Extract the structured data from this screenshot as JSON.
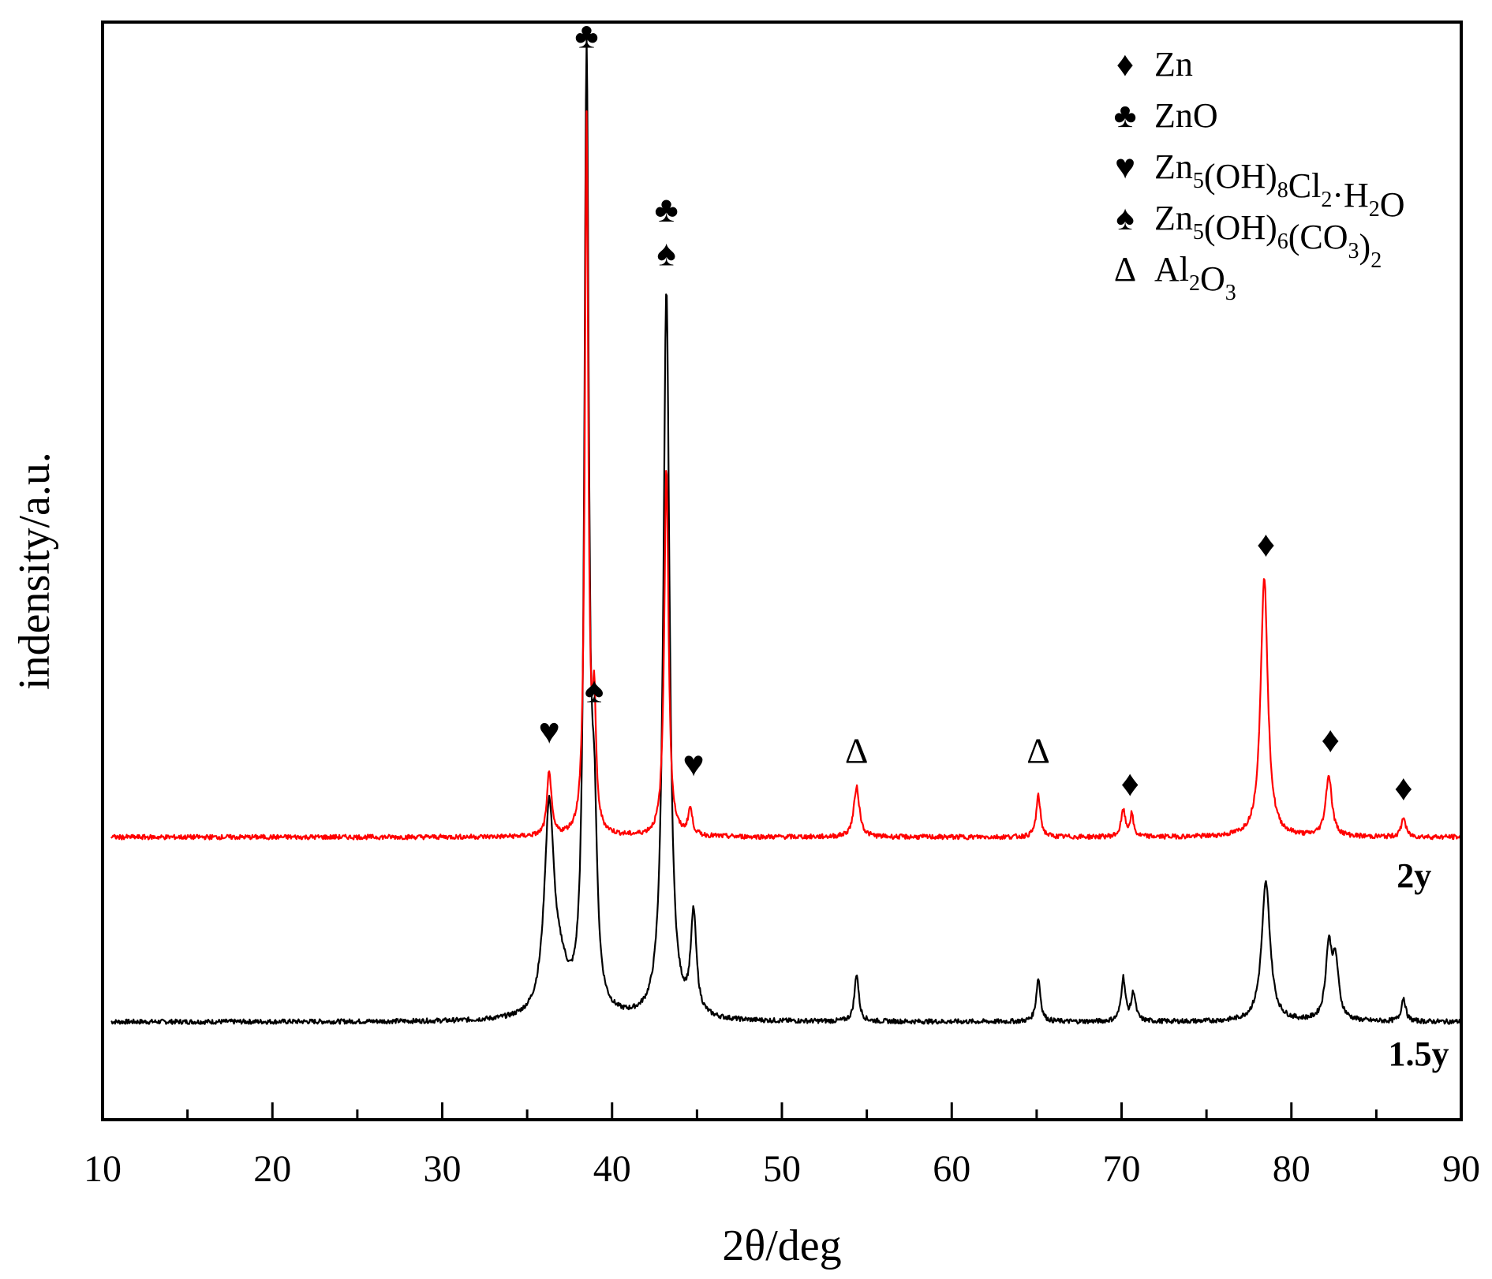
{
  "chart_data": {
    "type": "line",
    "title": "",
    "xlabel": "2θ/deg",
    "ylabel": "indensity/a.u.",
    "xlim": [
      10,
      90
    ],
    "xticks": [
      10,
      20,
      30,
      40,
      50,
      60,
      70,
      80,
      90
    ],
    "ylim": [
      -4.5,
      46
    ],
    "grid": false,
    "y_ticks_shown": false,
    "legend": {
      "placement": "top-right",
      "entries": [
        {
          "symbol": "diamond",
          "glyph": "♦",
          "label": "Zn",
          "parts": [
            [
              "Zn",
              ""
            ]
          ]
        },
        {
          "symbol": "club",
          "glyph": "♣",
          "label": "ZnO",
          "parts": [
            [
              "ZnO",
              ""
            ]
          ]
        },
        {
          "symbol": "heart",
          "glyph": "♥",
          "label": "Zn5(OH)8Cl2·H2O",
          "parts": [
            [
              "Zn",
              "5"
            ],
            [
              "(OH)",
              "8"
            ],
            [
              "Cl",
              "2"
            ],
            [
              "·H",
              "2"
            ],
            [
              "O",
              ""
            ]
          ]
        },
        {
          "symbol": "spade",
          "glyph": "♠",
          "label": "Zn5(OH)6(CO3)2",
          "parts": [
            [
              "Zn",
              "5"
            ],
            [
              "(OH)",
              "6"
            ],
            [
              "(CO",
              "3"
            ],
            [
              ")",
              "2"
            ]
          ]
        },
        {
          "symbol": "triangle",
          "glyph": "Δ",
          "label": "Al2O3",
          "parts": [
            [
              "Al",
              "2"
            ],
            [
              "O",
              "3"
            ]
          ]
        }
      ]
    },
    "series": [
      {
        "name": "1.5y",
        "color": "#000000",
        "baseline": 0,
        "peaks": [
          {
            "x": 36.3,
            "h": 9.5,
            "w": 0.35
          },
          {
            "x": 37.0,
            "h": 1.5,
            "w": 0.5
          },
          {
            "x": 38.5,
            "h": 43.5,
            "w": 0.16
          },
          {
            "x": 38.95,
            "h": 7.5,
            "w": 0.2
          },
          {
            "x": 43.2,
            "h": 33.5,
            "w": 0.22
          },
          {
            "x": 44.8,
            "h": 4.6,
            "w": 0.2
          },
          {
            "x": 54.4,
            "h": 2.2,
            "w": 0.15
          },
          {
            "x": 65.1,
            "h": 2.0,
            "w": 0.15
          },
          {
            "x": 70.1,
            "h": 2.0,
            "w": 0.15
          },
          {
            "x": 70.7,
            "h": 1.3,
            "w": 0.15
          },
          {
            "x": 78.5,
            "h": 6.4,
            "w": 0.3
          },
          {
            "x": 82.2,
            "h": 3.3,
            "w": 0.22
          },
          {
            "x": 82.6,
            "h": 2.5,
            "w": 0.22
          },
          {
            "x": 86.6,
            "h": 1.1,
            "w": 0.15
          }
        ]
      },
      {
        "name": "2y",
        "color": "#ff0000",
        "baseline": 8.5,
        "peaks": [
          {
            "x": 36.3,
            "h": 3.0,
            "w": 0.15
          },
          {
            "x": 38.5,
            "h": 33.0,
            "w": 0.12
          },
          {
            "x": 38.95,
            "h": 5.4,
            "w": 0.12
          },
          {
            "x": 43.2,
            "h": 17.0,
            "w": 0.15
          },
          {
            "x": 44.6,
            "h": 1.2,
            "w": 0.15
          },
          {
            "x": 54.4,
            "h": 2.3,
            "w": 0.2
          },
          {
            "x": 65.1,
            "h": 1.9,
            "w": 0.15
          },
          {
            "x": 70.1,
            "h": 1.2,
            "w": 0.15
          },
          {
            "x": 70.6,
            "h": 1.0,
            "w": 0.12
          },
          {
            "x": 78.4,
            "h": 12.0,
            "w": 0.25
          },
          {
            "x": 82.2,
            "h": 2.8,
            "w": 0.22
          },
          {
            "x": 86.6,
            "h": 0.9,
            "w": 0.15
          }
        ]
      }
    ],
    "series_labels": [
      {
        "text": "2y",
        "x": 86.2,
        "y": 6.2
      },
      {
        "text": "1.5y",
        "x": 85.7,
        "y": -2.0
      }
    ],
    "annotations": [
      {
        "symbol": "club",
        "glyph": "♣",
        "x": 38.5,
        "y": 45.2
      },
      {
        "symbol": "club",
        "glyph": "♣",
        "x": 43.2,
        "y": 37.2
      },
      {
        "symbol": "spade",
        "glyph": "♠",
        "x": 43.2,
        "y": 35.2
      },
      {
        "symbol": "heart",
        "glyph": "♥",
        "x": 36.3,
        "y": 13.2
      },
      {
        "symbol": "spade",
        "glyph": "♠",
        "x": 38.95,
        "y": 15.1
      },
      {
        "symbol": "heart",
        "glyph": "♥",
        "x": 44.8,
        "y": 11.7
      },
      {
        "symbol": "triangle",
        "glyph": "Δ",
        "x": 54.4,
        "y": 12.3
      },
      {
        "symbol": "triangle",
        "glyph": "Δ",
        "x": 65.1,
        "y": 12.3
      },
      {
        "symbol": "diamond",
        "glyph": "♦",
        "x": 70.5,
        "y": 10.8
      },
      {
        "symbol": "diamond",
        "glyph": "♦",
        "x": 78.5,
        "y": 21.8
      },
      {
        "symbol": "diamond",
        "glyph": "♦",
        "x": 82.3,
        "y": 12.8
      },
      {
        "symbol": "diamond",
        "glyph": "♦",
        "x": 86.6,
        "y": 10.6
      }
    ]
  }
}
